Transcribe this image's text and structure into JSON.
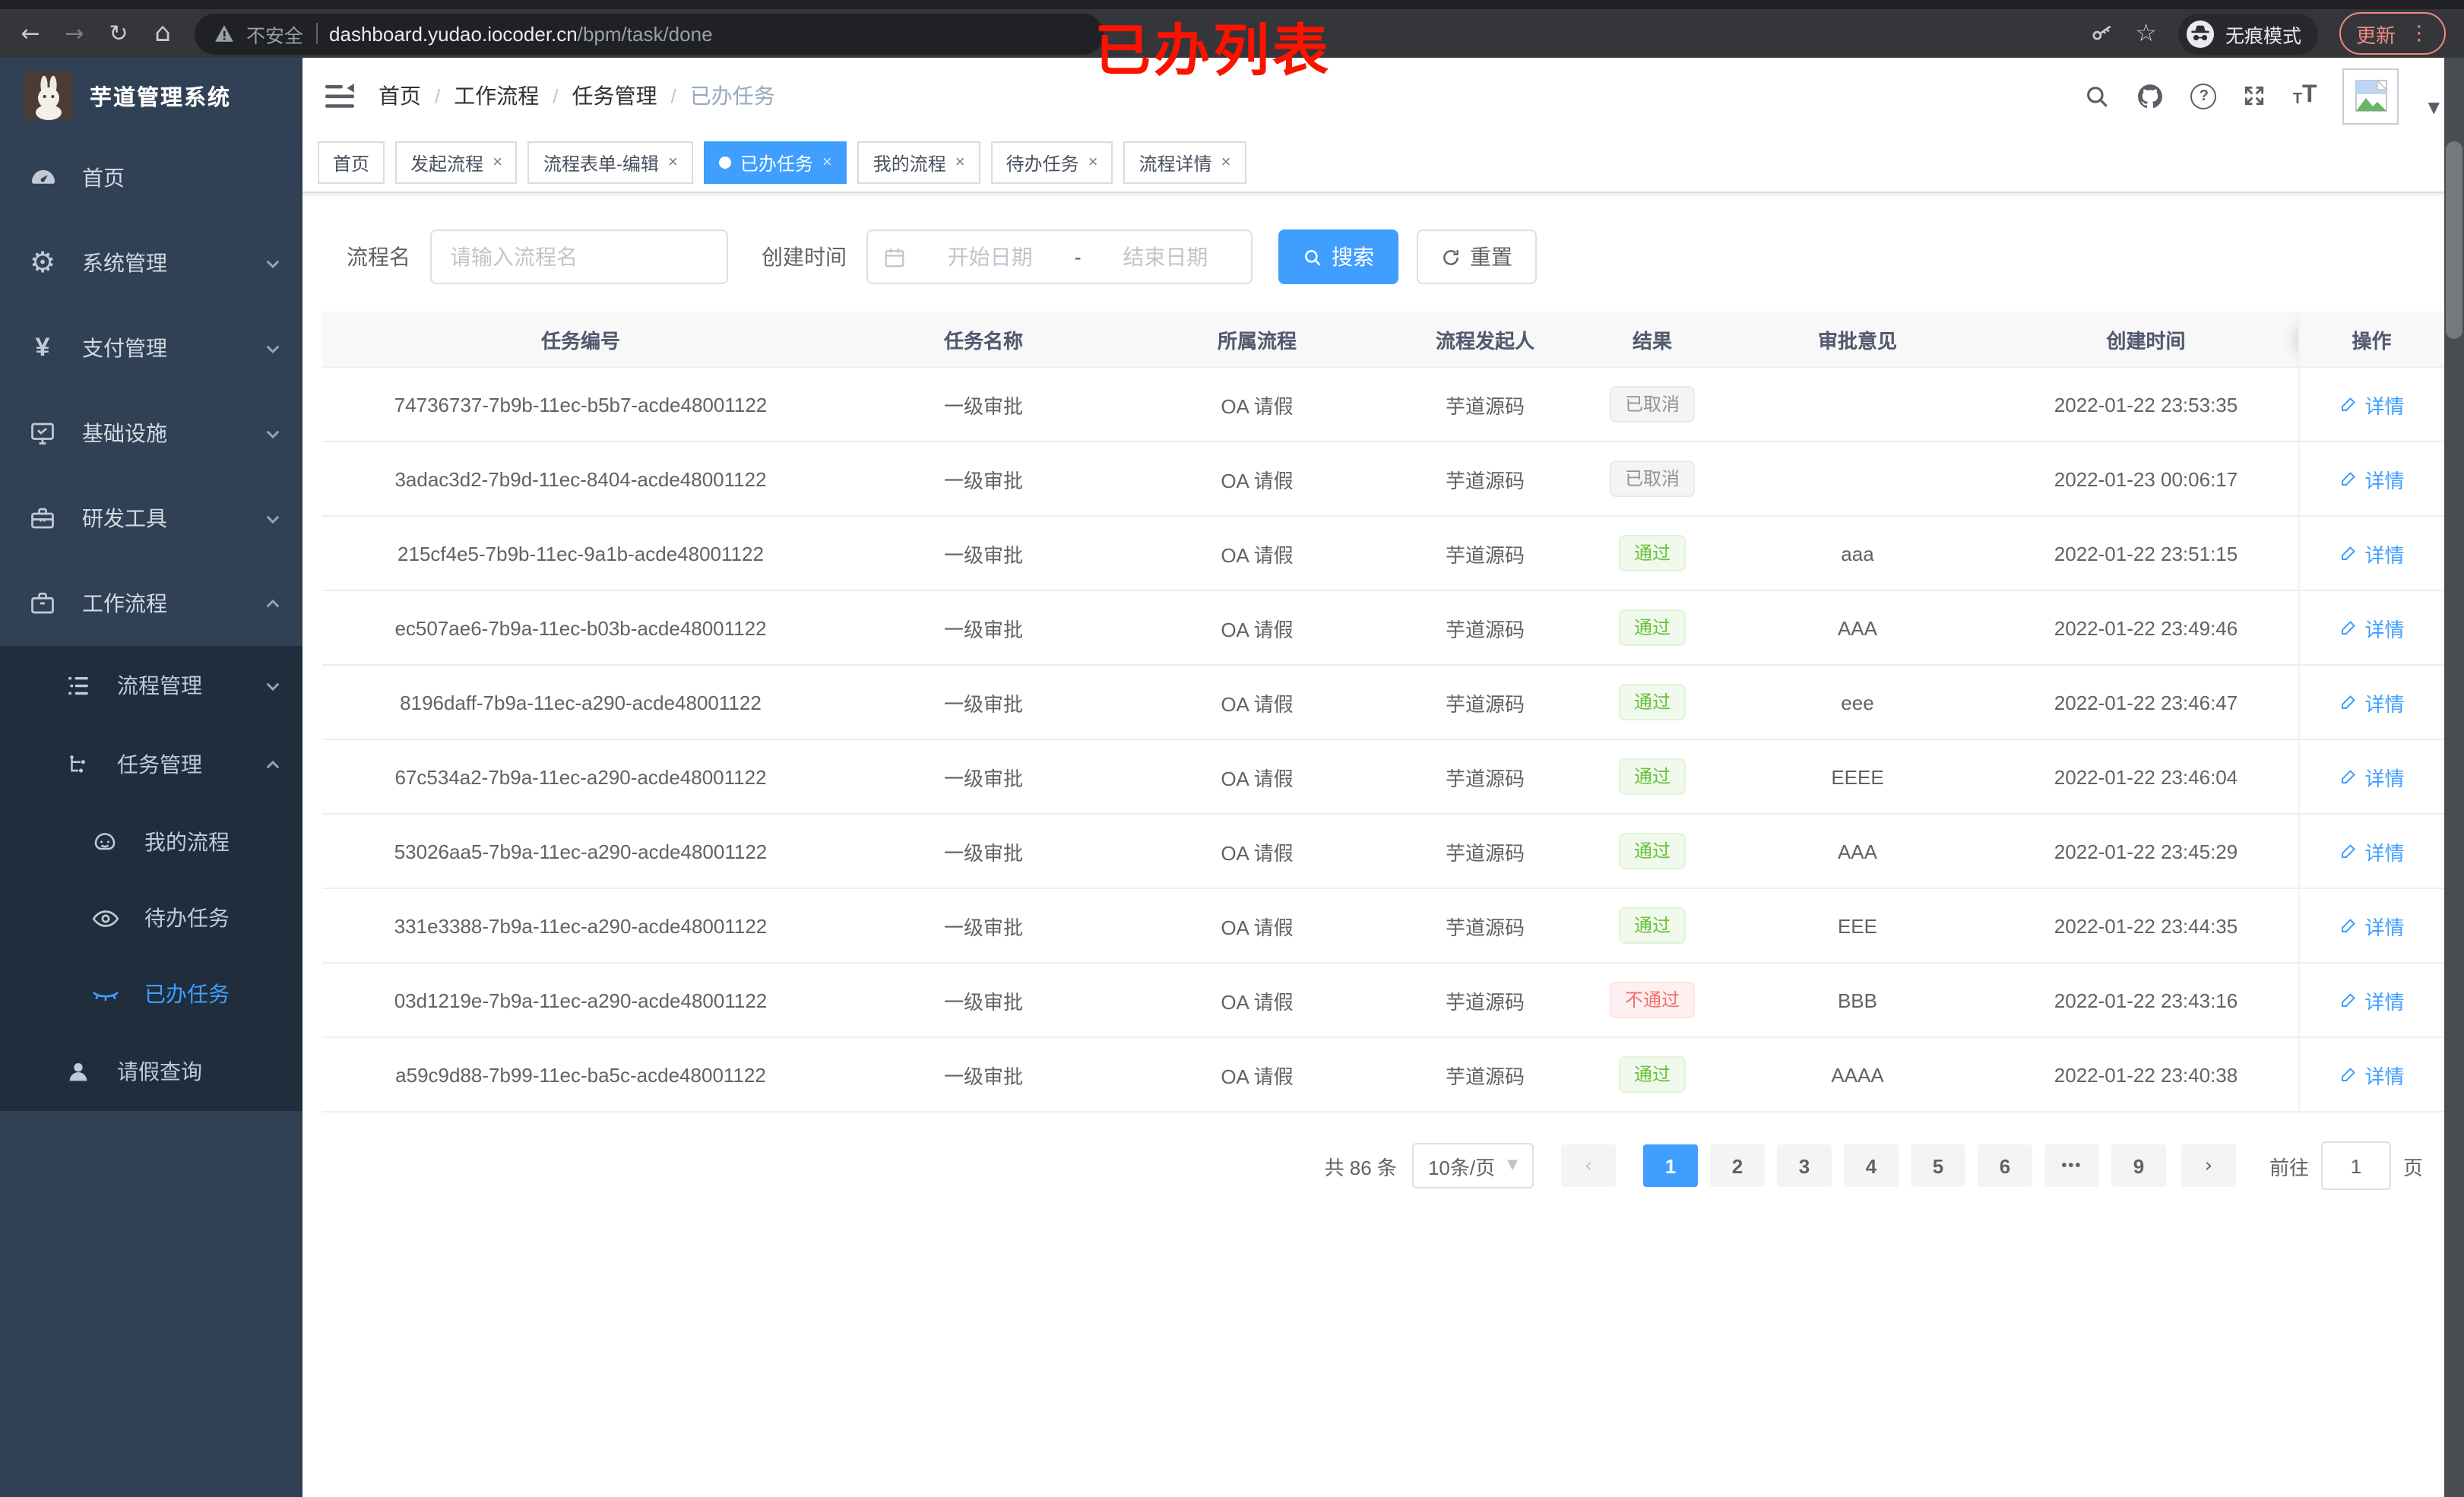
{
  "browser": {
    "security_label": "不安全",
    "url_host": "dashboard.yudao.iocoder.cn",
    "url_path": "/bpm/task/done",
    "incognito_label": "无痕模式",
    "update_label": "更新"
  },
  "annotation": "已办列表",
  "sidebar": {
    "logo_title": "芋道管理系统",
    "home": "首页",
    "system": "系统管理",
    "pay": "支付管理",
    "infra": "基础设施",
    "dev": "研发工具",
    "workflow": "工作流程",
    "process_mgmt": "流程管理",
    "task_mgmt": "任务管理",
    "my_process": "我的流程",
    "todo_task": "待办任务",
    "done_task": "已办任务",
    "leave_query": "请假查询"
  },
  "breadcrumb": [
    "首页",
    "工作流程",
    "任务管理",
    "已办任务"
  ],
  "tabs": [
    {
      "label": "首页",
      "active": false,
      "closable": false
    },
    {
      "label": "发起流程",
      "active": false,
      "closable": true
    },
    {
      "label": "流程表单-编辑",
      "active": false,
      "closable": true
    },
    {
      "label": "已办任务",
      "active": true,
      "closable": true
    },
    {
      "label": "我的流程",
      "active": false,
      "closable": true
    },
    {
      "label": "待办任务",
      "active": false,
      "closable": true
    },
    {
      "label": "流程详情",
      "active": false,
      "closable": true
    }
  ],
  "filters": {
    "name_label": "流程名",
    "name_placeholder": "请输入流程名",
    "time_label": "创建时间",
    "start_placeholder": "开始日期",
    "range_separator": "-",
    "end_placeholder": "结束日期",
    "search_label": "搜索",
    "reset_label": "重置"
  },
  "table": {
    "columns": [
      "任务编号",
      "任务名称",
      "所属流程",
      "流程发起人",
      "结果",
      "审批意见",
      "创建时间",
      "操作"
    ],
    "action_label": "详情",
    "rows": [
      {
        "id": "74736737-7b9b-11ec-b5b7-acde48001122",
        "name": "一级审批",
        "process": "OA 请假",
        "starter": "芋道源码",
        "result": "已取消",
        "result_type": "info",
        "comment": "",
        "created": "2022-01-22 23:53:35"
      },
      {
        "id": "3adac3d2-7b9d-11ec-8404-acde48001122",
        "name": "一级审批",
        "process": "OA 请假",
        "starter": "芋道源码",
        "result": "已取消",
        "result_type": "info",
        "comment": "",
        "created": "2022-01-23 00:06:17"
      },
      {
        "id": "215cf4e5-7b9b-11ec-9a1b-acde48001122",
        "name": "一级审批",
        "process": "OA 请假",
        "starter": "芋道源码",
        "result": "通过",
        "result_type": "success",
        "comment": "aaa",
        "created": "2022-01-22 23:51:15"
      },
      {
        "id": "ec507ae6-7b9a-11ec-b03b-acde48001122",
        "name": "一级审批",
        "process": "OA 请假",
        "starter": "芋道源码",
        "result": "通过",
        "result_type": "success",
        "comment": "AAA",
        "created": "2022-01-22 23:49:46"
      },
      {
        "id": "8196daff-7b9a-11ec-a290-acde48001122",
        "name": "一级审批",
        "process": "OA 请假",
        "starter": "芋道源码",
        "result": "通过",
        "result_type": "success",
        "comment": "eee",
        "created": "2022-01-22 23:46:47"
      },
      {
        "id": "67c534a2-7b9a-11ec-a290-acde48001122",
        "name": "一级审批",
        "process": "OA 请假",
        "starter": "芋道源码",
        "result": "通过",
        "result_type": "success",
        "comment": "EEEE",
        "created": "2022-01-22 23:46:04"
      },
      {
        "id": "53026aa5-7b9a-11ec-a290-acde48001122",
        "name": "一级审批",
        "process": "OA 请假",
        "starter": "芋道源码",
        "result": "通过",
        "result_type": "success",
        "comment": "AAA",
        "created": "2022-01-22 23:45:29"
      },
      {
        "id": "331e3388-7b9a-11ec-a290-acde48001122",
        "name": "一级审批",
        "process": "OA 请假",
        "starter": "芋道源码",
        "result": "通过",
        "result_type": "success",
        "comment": "EEE",
        "created": "2022-01-22 23:44:35"
      },
      {
        "id": "03d1219e-7b9a-11ec-a290-acde48001122",
        "name": "一级审批",
        "process": "OA 请假",
        "starter": "芋道源码",
        "result": "不通过",
        "result_type": "danger",
        "comment": "BBB",
        "created": "2022-01-22 23:43:16"
      },
      {
        "id": "a59c9d88-7b99-11ec-ba5c-acde48001122",
        "name": "一级审批",
        "process": "OA 请假",
        "starter": "芋道源码",
        "result": "通过",
        "result_type": "success",
        "comment": "AAAA",
        "created": "2022-01-22 23:40:38"
      }
    ]
  },
  "pagination": {
    "total_label": "共 86 条",
    "page_size": "10条/页",
    "prev_icon": "‹",
    "next_icon": "›",
    "pages": [
      "1",
      "2",
      "3",
      "4",
      "5",
      "6",
      "•••",
      "9"
    ],
    "active_page": "1",
    "goto_label": "前往",
    "goto_value": "1",
    "page_suffix": "页"
  }
}
